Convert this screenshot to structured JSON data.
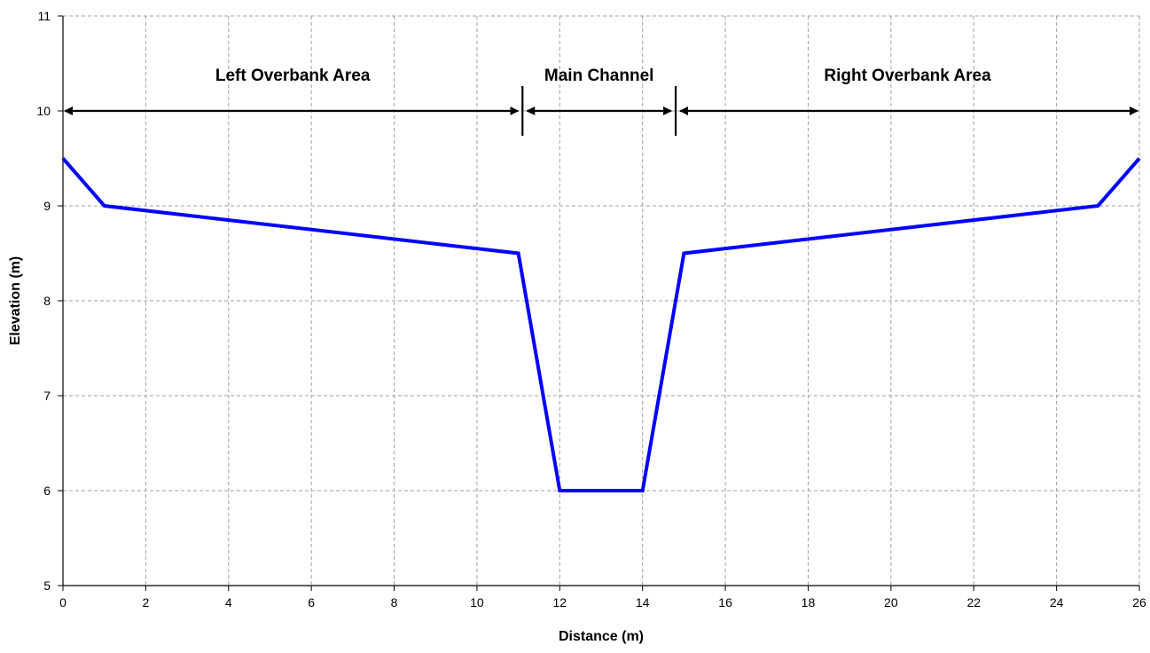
{
  "chart_data": {
    "type": "line",
    "xlabel": "Distance (m)",
    "ylabel": "Elevation (m)",
    "xlim": [
      0,
      26
    ],
    "ylim": [
      5,
      11
    ],
    "x_ticks": [
      0,
      2,
      4,
      6,
      8,
      10,
      12,
      14,
      16,
      18,
      20,
      22,
      24,
      26
    ],
    "y_ticks": [
      5,
      6,
      7,
      8,
      9,
      10,
      11
    ],
    "grid": true,
    "series": [
      {
        "color": "#0000ff",
        "x": [
          0,
          1,
          11,
          12,
          14,
          15,
          25,
          26
        ],
        "y": [
          9.5,
          9.0,
          8.5,
          6.0,
          6.0,
          8.5,
          9.0,
          9.5
        ]
      }
    ],
    "annotations": [
      {
        "label": "Left Overbank Area",
        "x_start": 0,
        "x_end": 11.1,
        "y": 10
      },
      {
        "label": "Main Channel",
        "x_start": 11.1,
        "x_end": 14.8,
        "y": 10
      },
      {
        "label": "Right Overbank Area",
        "x_start": 14.8,
        "x_end": 26,
        "y": 10
      }
    ],
    "dividers": [
      11.1,
      14.8
    ]
  }
}
